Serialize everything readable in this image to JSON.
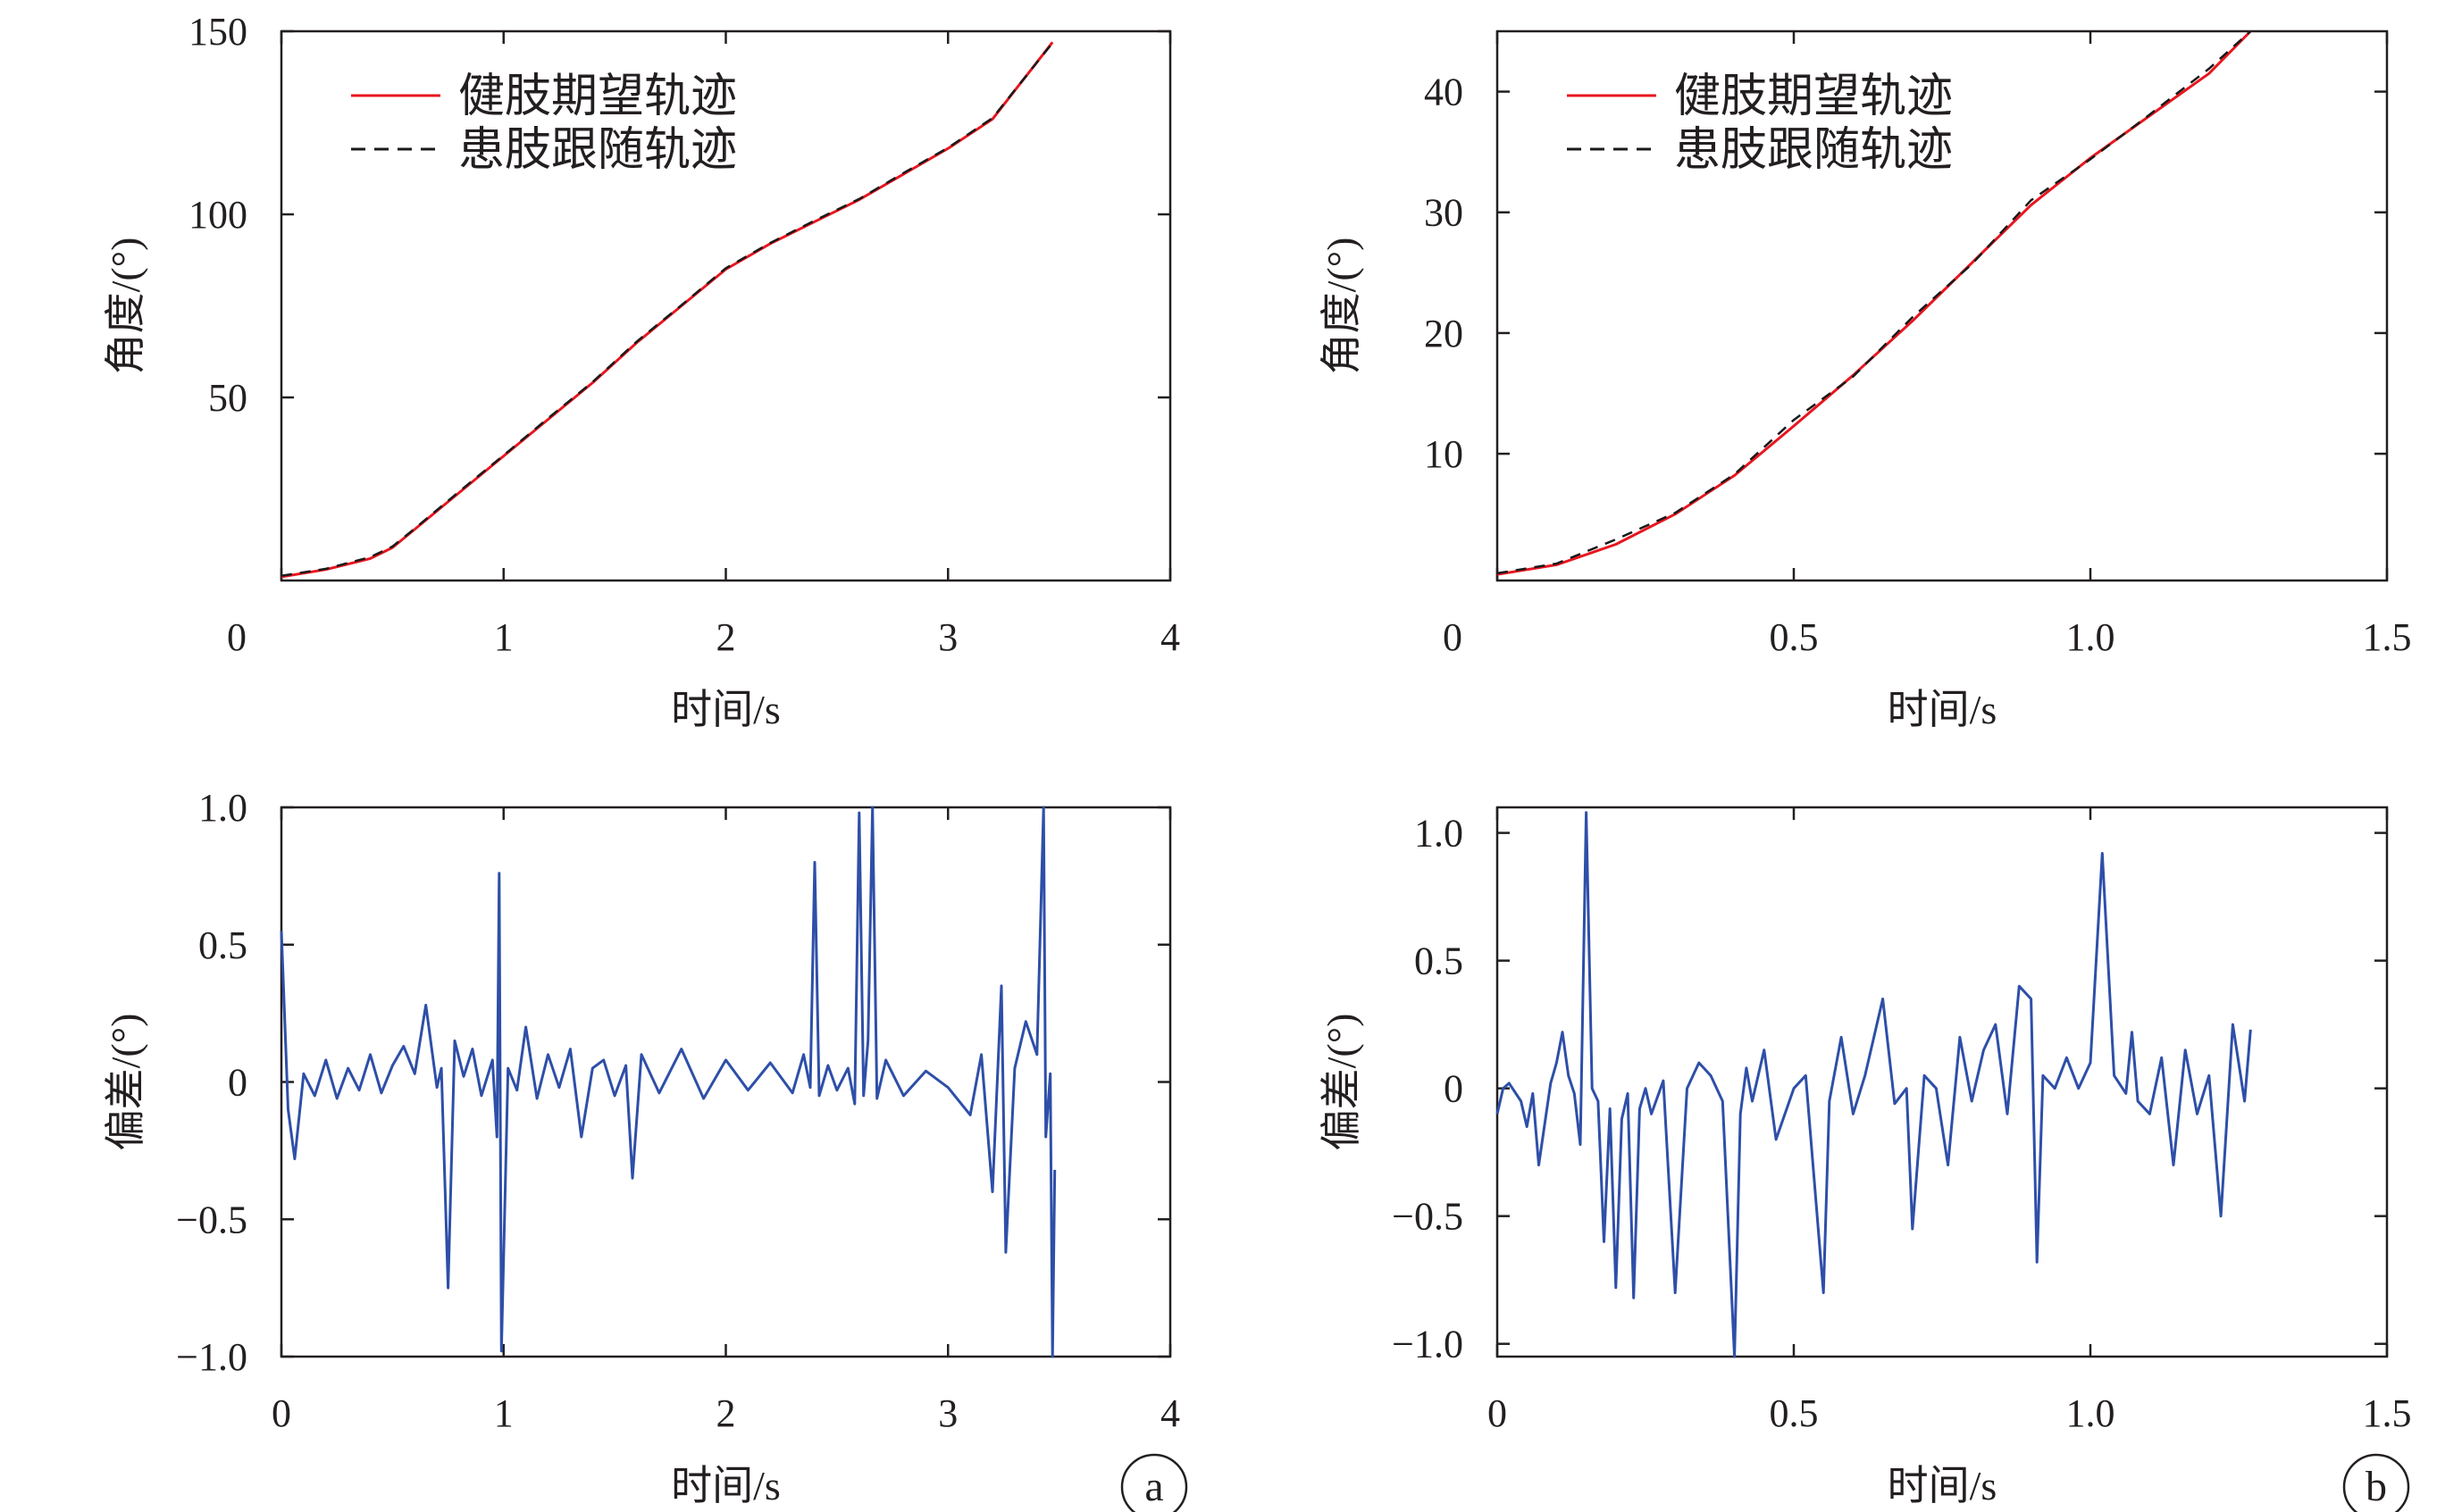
{
  "colors": {
    "expected": "#e8161f",
    "follow": "#1a1a1a",
    "deviation": "#2e4fa8",
    "axis": "#231f20"
  },
  "panel_labels": {
    "a": "a",
    "b": "b"
  },
  "chart_data": [
    {
      "id": "a-top",
      "type": "line",
      "xlabel": "时间/s",
      "ylabel": "角度/(°)",
      "xlim": [
        0,
        4
      ],
      "ylim": [
        0,
        150
      ],
      "xticks": [
        0,
        1,
        2,
        3,
        4
      ],
      "xtick_labels": [
        "0",
        "1",
        "2",
        "3",
        "4"
      ],
      "yticks": [
        50,
        100,
        150
      ],
      "ytick_labels": [
        "50",
        "100",
        "150"
      ],
      "grid": false,
      "legend": "top-left",
      "series": [
        {
          "name": "健肢期望轨迹",
          "style": "solid",
          "color_key": "expected",
          "x": [
            0,
            0.2,
            0.4,
            0.5,
            0.6,
            0.8,
            1.0,
            1.2,
            1.4,
            1.6,
            1.8,
            2.0,
            2.2,
            2.4,
            2.6,
            2.8,
            3.0,
            3.2,
            3.47
          ],
          "y": [
            1,
            3,
            6,
            9,
            14,
            24,
            34,
            44,
            54,
            65,
            75,
            85,
            92,
            98,
            104,
            111,
            118,
            126,
            147
          ]
        },
        {
          "name": "患肢跟随轨迹",
          "style": "dashed",
          "color_key": "follow",
          "x": [
            0,
            0.2,
            0.4,
            0.5,
            0.6,
            0.8,
            1.0,
            1.2,
            1.4,
            1.6,
            1.8,
            2.0,
            2.2,
            2.4,
            2.6,
            2.8,
            3.0,
            3.2,
            3.47
          ],
          "y": [
            1.3,
            3.2,
            6.4,
            9.3,
            14.2,
            24.3,
            34.2,
            44.3,
            54.2,
            65.3,
            75.2,
            85.3,
            92.2,
            98.3,
            104.2,
            111.3,
            118.2,
            126.3,
            146.8
          ]
        }
      ]
    },
    {
      "id": "b-top",
      "type": "line",
      "xlabel": "时间/s",
      "ylabel": "角度/(°)",
      "xlim": [
        0,
        1.5
      ],
      "ylim": [
        -0.5,
        45
      ],
      "xticks": [
        0,
        0.5,
        1.0,
        1.5
      ],
      "xtick_labels": [
        "0",
        "0.5",
        "1.0",
        "1.5"
      ],
      "yticks": [
        10,
        20,
        30,
        40
      ],
      "ytick_labels": [
        "10",
        "20",
        "30",
        "40"
      ],
      "grid": false,
      "legend": "top-left",
      "series": [
        {
          "name": "健肢期望轨迹",
          "style": "solid",
          "color_key": "expected",
          "x": [
            0,
            0.1,
            0.2,
            0.3,
            0.4,
            0.5,
            0.6,
            0.7,
            0.8,
            0.9,
            1.0,
            1.1,
            1.2,
            1.27
          ],
          "y": [
            0,
            0.8,
            2.5,
            5.0,
            8.2,
            12.3,
            16.5,
            21.0,
            25.8,
            30.6,
            34.5,
            38.0,
            41.5,
            45
          ]
        },
        {
          "name": "患肢跟随轨迹",
          "style": "dashed",
          "color_key": "follow",
          "x": [
            0,
            0.1,
            0.2,
            0.3,
            0.4,
            0.5,
            0.6,
            0.7,
            0.8,
            0.9,
            1.0,
            1.1,
            1.2,
            1.27
          ],
          "y": [
            0.1,
            0.9,
            2.9,
            5.1,
            8.3,
            12.8,
            16.4,
            21.3,
            25.7,
            31.0,
            34.4,
            38.1,
            41.9,
            45
          ]
        }
      ]
    },
    {
      "id": "a-bottom",
      "type": "line",
      "xlabel": "时间/s",
      "ylabel": "偏差/(°)",
      "xlim": [
        0,
        4
      ],
      "ylim": [
        -1.0,
        1.0
      ],
      "xticks": [
        0,
        1,
        2,
        3,
        4
      ],
      "xtick_labels": [
        "0",
        "1",
        "2",
        "3",
        "4"
      ],
      "yticks": [
        -1.0,
        -0.5,
        0,
        0.5,
        1.0
      ],
      "ytick_labels": [
        "−1.0",
        "−0.5",
        "0",
        "0.5",
        "1.0"
      ],
      "grid": false,
      "series": [
        {
          "color_key": "deviation",
          "x": [
            0.0,
            0.03,
            0.06,
            0.1,
            0.15,
            0.2,
            0.25,
            0.3,
            0.35,
            0.4,
            0.45,
            0.5,
            0.55,
            0.6,
            0.65,
            0.7,
            0.72,
            0.75,
            0.78,
            0.82,
            0.86,
            0.9,
            0.95,
            0.97,
            0.98,
            0.99,
            1.02,
            1.06,
            1.1,
            1.15,
            1.2,
            1.25,
            1.3,
            1.35,
            1.4,
            1.45,
            1.5,
            1.55,
            1.58,
            1.62,
            1.7,
            1.8,
            1.9,
            2.0,
            2.1,
            2.2,
            2.3,
            2.35,
            2.38,
            2.4,
            2.42,
            2.46,
            2.5,
            2.55,
            2.58,
            2.6,
            2.62,
            2.64,
            2.66,
            2.68,
            2.72,
            2.8,
            2.9,
            3.0,
            3.1,
            3.15,
            3.2,
            3.24,
            3.26,
            3.3,
            3.35,
            3.4,
            3.43,
            3.44,
            3.46,
            3.47,
            3.48
          ],
          "y": [
            0.55,
            -0.1,
            -0.28,
            0.03,
            -0.05,
            0.08,
            -0.06,
            0.05,
            -0.03,
            0.1,
            -0.04,
            0.06,
            0.13,
            0.03,
            0.28,
            -0.02,
            0.05,
            -0.75,
            0.15,
            0.02,
            0.12,
            -0.05,
            0.08,
            -0.2,
            0.76,
            -0.98,
            0.05,
            -0.03,
            0.2,
            -0.06,
            0.1,
            -0.02,
            0.12,
            -0.2,
            0.05,
            0.08,
            -0.05,
            0.06,
            -0.35,
            0.1,
            -0.04,
            0.12,
            -0.06,
            0.08,
            -0.03,
            0.07,
            -0.04,
            0.1,
            -0.02,
            0.8,
            -0.05,
            0.06,
            -0.03,
            0.05,
            -0.08,
            0.98,
            -0.05,
            0.15,
            1.0,
            -0.06,
            0.08,
            -0.05,
            0.04,
            -0.02,
            -0.12,
            0.1,
            -0.4,
            0.35,
            -0.62,
            0.05,
            0.22,
            0.1,
            1.0,
            -0.2,
            0.03,
            -1.0,
            -0.32
          ]
        }
      ]
    },
    {
      "id": "b-bottom",
      "type": "line",
      "xlabel": "时间/s",
      "ylabel": "偏差/(°)",
      "xlim": [
        0,
        1.5
      ],
      "ylim": [
        -1.05,
        1.1
      ],
      "xticks": [
        0,
        0.5,
        1.0,
        1.5
      ],
      "xtick_labels": [
        "0",
        "0.5",
        "1.0",
        "1.5"
      ],
      "yticks": [
        -1.0,
        -0.5,
        0,
        0.5,
        1.0
      ],
      "ytick_labels": [
        "−1.0",
        "−0.5",
        "0",
        "0.5",
        "1.0"
      ],
      "grid": false,
      "series": [
        {
          "color_key": "deviation",
          "x": [
            0.0,
            0.01,
            0.02,
            0.04,
            0.05,
            0.06,
            0.07,
            0.09,
            0.1,
            0.11,
            0.12,
            0.13,
            0.14,
            0.15,
            0.16,
            0.17,
            0.18,
            0.19,
            0.2,
            0.21,
            0.22,
            0.23,
            0.24,
            0.25,
            0.26,
            0.28,
            0.3,
            0.32,
            0.34,
            0.36,
            0.38,
            0.4,
            0.41,
            0.42,
            0.43,
            0.45,
            0.47,
            0.5,
            0.52,
            0.55,
            0.56,
            0.58,
            0.6,
            0.62,
            0.65,
            0.67,
            0.69,
            0.7,
            0.72,
            0.74,
            0.76,
            0.78,
            0.8,
            0.82,
            0.84,
            0.86,
            0.88,
            0.9,
            0.91,
            0.92,
            0.94,
            0.96,
            0.98,
            1.0,
            1.02,
            1.04,
            1.06,
            1.07,
            1.08,
            1.1,
            1.12,
            1.14,
            1.16,
            1.18,
            1.2,
            1.22,
            1.24,
            1.26,
            1.27
          ],
          "y": [
            -0.1,
            0.0,
            0.02,
            -0.05,
            -0.15,
            -0.02,
            -0.3,
            0.02,
            0.1,
            0.22,
            0.05,
            -0.02,
            -0.22,
            1.08,
            0.0,
            -0.05,
            -0.6,
            -0.08,
            -0.78,
            -0.12,
            -0.02,
            -0.82,
            -0.08,
            0.0,
            -0.1,
            0.03,
            -0.8,
            0.0,
            0.1,
            0.05,
            -0.05,
            -1.05,
            -0.1,
            0.08,
            -0.05,
            0.15,
            -0.2,
            0.0,
            0.05,
            -0.8,
            -0.05,
            0.2,
            -0.1,
            0.05,
            0.35,
            -0.06,
            0.0,
            -0.55,
            0.05,
            0.0,
            -0.3,
            0.2,
            -0.05,
            0.15,
            0.25,
            -0.1,
            0.4,
            0.35,
            -0.68,
            0.05,
            0.0,
            0.12,
            0.0,
            0.1,
            0.92,
            0.05,
            -0.02,
            0.22,
            -0.05,
            -0.1,
            0.12,
            -0.3,
            0.15,
            -0.1,
            0.05,
            -0.5,
            0.25,
            -0.05,
            0.23
          ]
        }
      ]
    }
  ]
}
